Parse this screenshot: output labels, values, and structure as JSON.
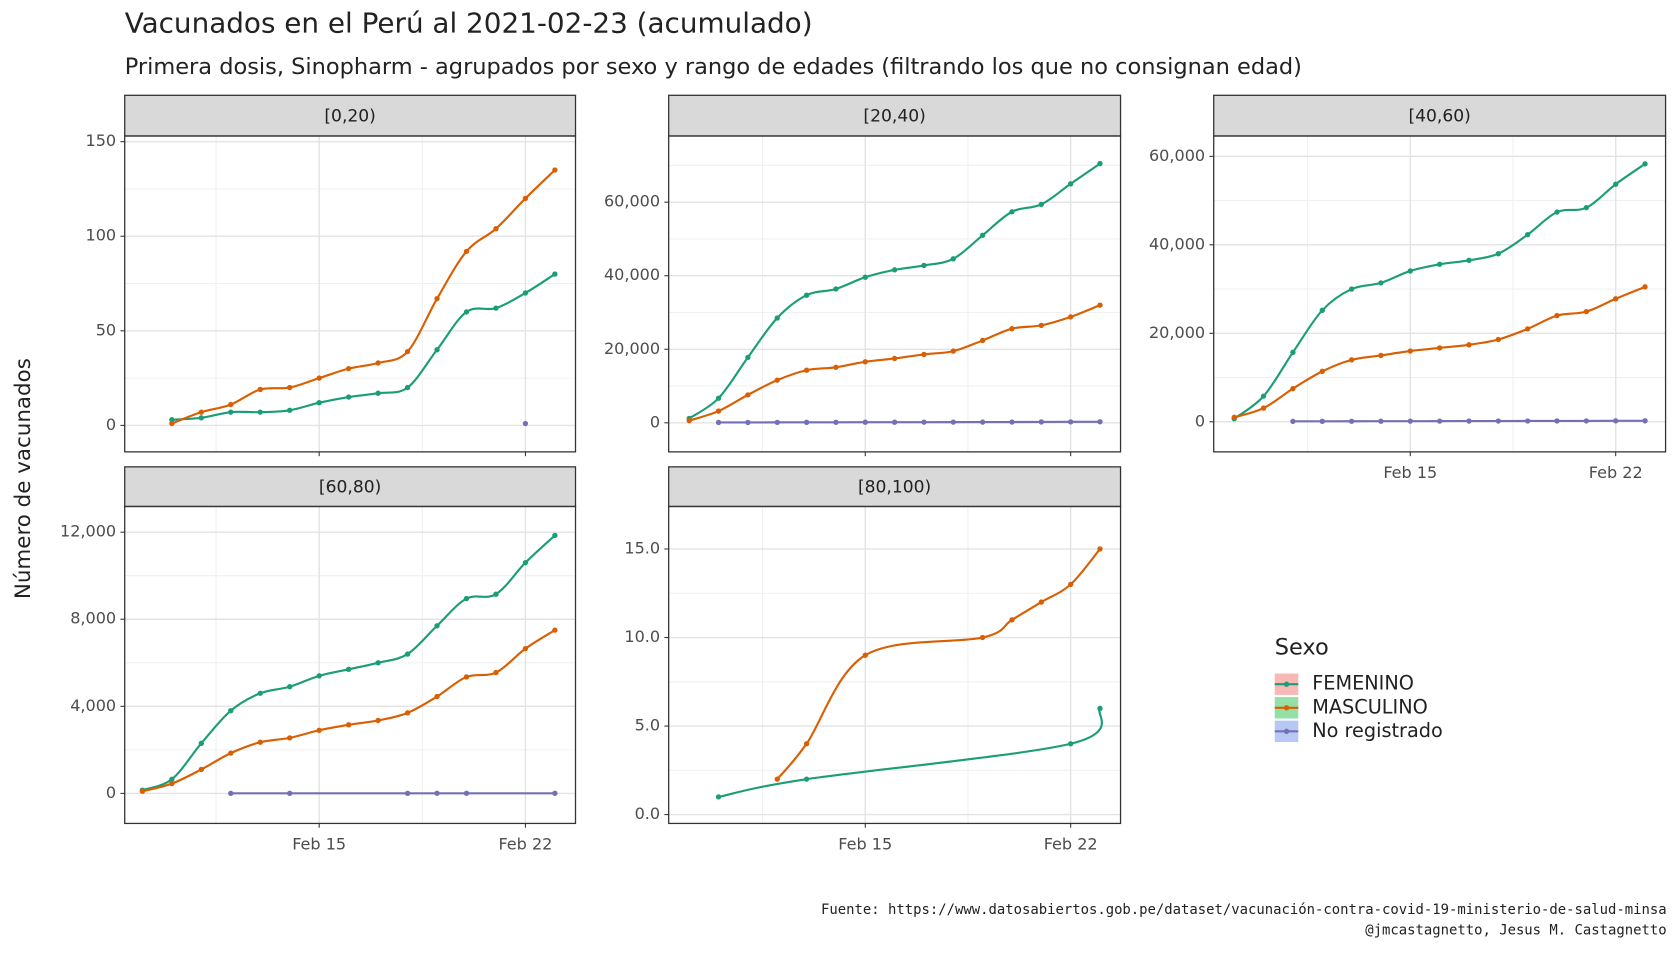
{
  "title": "Vacunados en el Perú al 2021-02-23 (acumulado)",
  "subtitle": "Primera dosis, Sinopharm - agrupados por sexo y rango de edades (filtrando los que no consignan edad)",
  "y_label": "Número de vacunados",
  "caption": [
    "Fuente: https://www.datosabiertos.gob.pe/dataset/vacunación-contra-covid-19-ministerio-de-salud-minsa",
    "@jmcastagnetto, Jesus M. Castagnetto"
  ],
  "legend": {
    "title": "Sexo",
    "series": [
      {
        "name": "FEMENINO",
        "color": "#1b9e77",
        "fill": "#f8b9b4"
      },
      {
        "name": "MASCULINO",
        "color": "#d95f02",
        "fill": "#94e0a6"
      },
      {
        "name": "No registrado",
        "color": "#7570b3",
        "fill": "#b7c8f5"
      }
    ]
  },
  "chart_data": [
    {
      "type": "line",
      "title": "[0,20)",
      "xlim": [
        8.4,
        23.7
      ],
      "xticks": [
        {
          "value": 15,
          "label": "Feb 15"
        },
        {
          "value": 22,
          "label": "Feb 22"
        }
      ],
      "show_xtick_labels": false,
      "ylim": [
        -14,
        153
      ],
      "yticks": [
        0,
        50,
        100,
        150
      ],
      "grid": true,
      "series": [
        {
          "x": [
            10,
            11,
            12,
            13,
            14,
            15,
            16,
            17,
            18,
            19,
            20,
            21,
            22,
            23
          ],
          "values": [
            3,
            4,
            7,
            7,
            8,
            12,
            15,
            17,
            20,
            40,
            60,
            62,
            70,
            80
          ]
        },
        {
          "x": [
            10,
            11,
            12,
            13,
            14,
            15,
            16,
            17,
            18,
            19,
            20,
            21,
            22,
            23
          ],
          "values": [
            1,
            7,
            11,
            19,
            20,
            25,
            30,
            33,
            39,
            67,
            92,
            104,
            120,
            135
          ]
        },
        {
          "x": [
            22
          ],
          "values": [
            1
          ]
        }
      ]
    },
    {
      "type": "line",
      "title": "[20,40)",
      "xlim": [
        8.3,
        23.7
      ],
      "xticks": [
        {
          "value": 15,
          "label": "Feb 15"
        },
        {
          "value": 22,
          "label": "Feb 22"
        }
      ],
      "show_xtick_labels": false,
      "ylim": [
        -7900,
        78000
      ],
      "yticks": [
        0,
        {
          "value": 20000,
          "label": "20,000"
        },
        {
          "value": 40000,
          "label": "40,000"
        },
        {
          "value": 60000,
          "label": "60,000"
        }
      ],
      "grid": true,
      "series": [
        {
          "x": [
            9,
            10,
            11,
            12,
            13,
            14,
            15,
            16,
            17,
            18,
            19,
            20,
            21,
            22,
            23
          ],
          "values": [
            1200,
            6700,
            17800,
            28500,
            34700,
            36400,
            39600,
            41600,
            42800,
            44600,
            51000,
            57400,
            59400,
            65000,
            70500
          ]
        },
        {
          "x": [
            9,
            10,
            11,
            12,
            13,
            14,
            15,
            16,
            17,
            18,
            19,
            20,
            21,
            22,
            23
          ],
          "values": [
            600,
            3200,
            7600,
            11600,
            14300,
            15100,
            16600,
            17500,
            18600,
            19500,
            22400,
            25600,
            26500,
            28800,
            32000
          ]
        },
        {
          "x": [
            10,
            11,
            12,
            13,
            14,
            15,
            16,
            17,
            18,
            19,
            20,
            21,
            22,
            23
          ],
          "values": [
            100,
            100,
            120,
            140,
            150,
            160,
            170,
            180,
            190,
            200,
            220,
            240,
            260,
            280
          ]
        }
      ]
    },
    {
      "type": "line",
      "title": "[40,60)",
      "xlim": [
        8.3,
        23.7
      ],
      "xticks": [
        {
          "value": 15,
          "label": "Feb 15"
        },
        {
          "value": 22,
          "label": "Feb 22"
        }
      ],
      "show_xtick_labels": true,
      "ylim": [
        -6800,
        64600
      ],
      "yticks": [
        0,
        {
          "value": 20000,
          "label": "20,000"
        },
        {
          "value": 40000,
          "label": "40,000"
        },
        {
          "value": 60000,
          "label": "60,000"
        }
      ],
      "grid": true,
      "series": [
        {
          "x": [
            9,
            10,
            11,
            12,
            13,
            14,
            15,
            16,
            17,
            18,
            19,
            20,
            21,
            22,
            23
          ],
          "values": [
            700,
            5800,
            15700,
            25200,
            30000,
            31400,
            34100,
            35600,
            36500,
            38000,
            42300,
            47400,
            48400,
            53700,
            58300
          ]
        },
        {
          "x": [
            9,
            10,
            11,
            12,
            13,
            14,
            15,
            16,
            17,
            18,
            19,
            20,
            21,
            22,
            23
          ],
          "values": [
            1000,
            3100,
            7500,
            11400,
            14000,
            15000,
            16000,
            16700,
            17400,
            18600,
            21000,
            24000,
            24900,
            27800,
            30500
          ]
        },
        {
          "x": [
            11,
            12,
            13,
            14,
            15,
            16,
            17,
            18,
            19,
            20,
            21,
            22,
            23
          ],
          "values": [
            100,
            110,
            120,
            130,
            140,
            150,
            160,
            170,
            180,
            190,
            200,
            210,
            220
          ]
        }
      ]
    },
    {
      "type": "line",
      "title": "[60,80)",
      "xlim": [
        8.4,
        23.7
      ],
      "xticks": [
        {
          "value": 15,
          "label": "Feb 15"
        },
        {
          "value": 22,
          "label": "Feb 22"
        }
      ],
      "show_xtick_labels": true,
      "ylim": [
        -1380,
        13180
      ],
      "yticks": [
        0,
        {
          "value": 4000,
          "label": "4,000"
        },
        {
          "value": 8000,
          "label": "8,000"
        },
        {
          "value": 12000,
          "label": "12,000"
        }
      ],
      "grid": true,
      "series": [
        {
          "x": [
            9,
            10,
            11,
            12,
            13,
            14,
            15,
            16,
            17,
            18,
            19,
            20,
            21,
            22,
            23
          ],
          "values": [
            150,
            650,
            2300,
            3800,
            4600,
            4900,
            5400,
            5700,
            6000,
            6400,
            7700,
            8950,
            9150,
            10600,
            11850
          ]
        },
        {
          "x": [
            9,
            10,
            11,
            12,
            13,
            14,
            15,
            16,
            17,
            18,
            19,
            20,
            21,
            22,
            23
          ],
          "values": [
            100,
            450,
            1100,
            1850,
            2350,
            2550,
            2900,
            3150,
            3350,
            3700,
            4450,
            5350,
            5550,
            6650,
            7500
          ]
        },
        {
          "x": [
            12,
            14,
            18,
            19,
            20,
            23
          ],
          "values": [
            2,
            3,
            4,
            5,
            5,
            6
          ]
        }
      ]
    },
    {
      "type": "line",
      "title": "[80,100)",
      "xlim": [
        8.3,
        23.7
      ],
      "xticks": [
        {
          "value": 15,
          "label": "Feb 15"
        },
        {
          "value": 22,
          "label": "Feb 22"
        }
      ],
      "show_xtick_labels": true,
      "ylim": [
        -0.5,
        17.4
      ],
      "yticks": [
        {
          "value": 0,
          "label": "0.0"
        },
        {
          "value": 5,
          "label": "5.0"
        },
        {
          "value": 10,
          "label": "10.0"
        },
        {
          "value": 15,
          "label": "15.0"
        }
      ],
      "grid": true,
      "series": [
        {
          "x": [
            10,
            13,
            22,
            23
          ],
          "values": [
            1,
            2,
            4,
            6
          ]
        },
        {
          "x": [
            12,
            13,
            15,
            19,
            20,
            21,
            22,
            23
          ],
          "values": [
            2,
            4,
            9,
            10,
            11,
            12,
            13,
            15
          ]
        },
        {
          "x": [],
          "values": []
        }
      ]
    }
  ]
}
